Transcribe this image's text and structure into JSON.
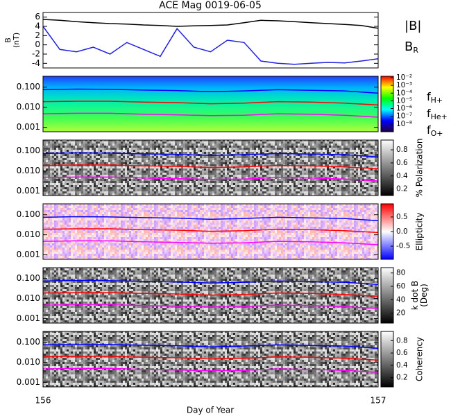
{
  "chart_data": [
    {
      "type": "line",
      "title": "ACE Mag 0019-06-05",
      "ylabel": [
        "B",
        "(nT)"
      ],
      "xlim": [
        156,
        157
      ],
      "ylim": [
        -5,
        7
      ],
      "yticks": [
        -4,
        -2,
        0,
        2,
        4,
        6
      ],
      "x": [
        156,
        156.05,
        156.1,
        156.15,
        156.2,
        156.25,
        156.3,
        156.35,
        156.4,
        156.45,
        156.5,
        156.55,
        156.6,
        156.65,
        156.7,
        156.75,
        156.8,
        156.85,
        156.9,
        156.95,
        157
      ],
      "series": [
        {
          "name": "|B|",
          "color": "#000000",
          "values": [
            5.5,
            5.3,
            5.0,
            4.8,
            4.6,
            4.5,
            4.3,
            4.2,
            4.0,
            4.1,
            4.2,
            4.3,
            4.8,
            5.3,
            5.2,
            5.0,
            4.8,
            4.6,
            4.4,
            4.2,
            3.6
          ]
        },
        {
          "name": "B",
          "subscript": "R",
          "color": "#2020e0",
          "values": [
            4.0,
            -1.0,
            -1.5,
            -0.5,
            -2.0,
            0.5,
            -1.0,
            -2.5,
            3.5,
            -0.5,
            -1.5,
            1.0,
            0.5,
            -3.5,
            -4.0,
            -4.2,
            -4.0,
            -3.8,
            -3.9,
            -3.5,
            -3.0
          ]
        }
      ]
    },
    {
      "type": "spectrogram",
      "log": true,
      "legend": true,
      "xlim": [
        156,
        157
      ],
      "ylim": [
        0.0006,
        0.35
      ],
      "yticks": [
        0.001,
        {
          "value": 0.01,
          "label": "0.010"
        },
        {
          "value": 0.1,
          "label": "0.100"
        }
      ],
      "clim": [
        1e-09,
        0.015
      ],
      "clog": true,
      "cticks": [
        {
          "value": 0.01,
          "label": "10⁻²"
        },
        {
          "value": 0.001,
          "label": "10⁻³"
        },
        {
          "value": 0.0001,
          "label": "10⁻⁴"
        },
        {
          "value": 1e-05,
          "label": "10⁻⁵"
        },
        {
          "value": 1e-06,
          "label": "10⁻⁶"
        },
        {
          "value": 1e-07,
          "label": "10⁻⁷"
        },
        {
          "value": 1e-08,
          "label": "10⁻⁸"
        }
      ],
      "x": [
        156,
        156.1,
        156.2,
        156.3,
        156.4,
        156.5,
        156.6,
        156.7,
        156.8,
        156.9,
        157
      ],
      "series": [
        {
          "name": "f",
          "subscript": "H+",
          "color": "#0000ff",
          "values": [
            0.075,
            0.08,
            0.078,
            0.072,
            0.068,
            0.06,
            0.065,
            0.075,
            0.07,
            0.065,
            0.05
          ]
        },
        {
          "name": "f",
          "subscript": "He+",
          "color": "#ff0000",
          "values": [
            0.019,
            0.02,
            0.02,
            0.018,
            0.017,
            0.015,
            0.016,
            0.019,
            0.018,
            0.016,
            0.013
          ]
        },
        {
          "name": "f",
          "subscript": "O+",
          "color": "#ff00ff",
          "values": [
            0.0047,
            0.005,
            0.005,
            0.0045,
            0.0042,
            0.0038,
            0.004,
            0.0047,
            0.0045,
            0.004,
            0.0032
          ]
        }
      ]
    },
    {
      "type": "spectrogram",
      "log": true,
      "xlim": [
        156,
        157
      ],
      "ylim": [
        0.0006,
        0.35
      ],
      "yticks": [
        0.001,
        {
          "value": 0.01,
          "label": "0.010"
        },
        {
          "value": 0.1,
          "label": "0.100"
        }
      ],
      "clabel": [
        "% Polarization"
      ],
      "clim": [
        0.1,
        0.95
      ],
      "cticks": [
        0.2,
        0.4,
        0.6,
        0.8
      ],
      "x": [
        156,
        156.1,
        156.2,
        156.3,
        156.4,
        156.5,
        156.6,
        156.7,
        156.8,
        156.9,
        157
      ],
      "series": [
        {
          "color": "#0000ff",
          "values": [
            0.075,
            0.08,
            0.078,
            0.072,
            0.068,
            0.06,
            0.065,
            0.075,
            0.07,
            0.065,
            0.05
          ]
        },
        {
          "color": "#ff0000",
          "values": [
            0.019,
            0.02,
            0.02,
            0.018,
            0.017,
            0.015,
            0.016,
            0.019,
            0.018,
            0.016,
            0.013
          ]
        },
        {
          "color": "#ff00ff",
          "values": [
            0.0047,
            0.005,
            0.005,
            0.0045,
            0.0042,
            0.0038,
            0.004,
            0.0047,
            0.0045,
            0.004,
            0.0032
          ]
        }
      ]
    },
    {
      "type": "spectrogram",
      "log": true,
      "xlim": [
        156,
        157
      ],
      "ylim": [
        0.0006,
        0.35
      ],
      "yticks": [
        0.001,
        {
          "value": 0.01,
          "label": "0.010"
        },
        {
          "value": 0.1,
          "label": "0.100"
        }
      ],
      "clabel": [
        "Ellipticity"
      ],
      "clim": [
        -0.95,
        0.95
      ],
      "cticks": [
        -0.5,
        {
          "value": 0,
          "label": "0.0"
        },
        0.5
      ],
      "x": [
        156,
        156.1,
        156.2,
        156.3,
        156.4,
        156.5,
        156.6,
        156.7,
        156.8,
        156.9,
        157
      ],
      "series": [
        {
          "color": "#0000ff",
          "values": [
            0.075,
            0.08,
            0.078,
            0.072,
            0.068,
            0.06,
            0.065,
            0.075,
            0.07,
            0.065,
            0.05
          ]
        },
        {
          "color": "#ff0000",
          "values": [
            0.019,
            0.02,
            0.02,
            0.018,
            0.017,
            0.015,
            0.016,
            0.019,
            0.018,
            0.016,
            0.013
          ]
        },
        {
          "color": "#ff00ff",
          "values": [
            0.0047,
            0.005,
            0.005,
            0.0045,
            0.0042,
            0.0038,
            0.004,
            0.0047,
            0.0045,
            0.004,
            0.0032
          ]
        }
      ]
    },
    {
      "type": "spectrogram",
      "log": true,
      "xlim": [
        156,
        157
      ],
      "ylim": [
        0.0006,
        0.35
      ],
      "yticks": [
        0.001,
        {
          "value": 0.01,
          "label": "0.010"
        },
        {
          "value": 0.1,
          "label": "0.100"
        }
      ],
      "clabel": [
        "k dot B",
        "(Deg)"
      ],
      "clim": [
        5,
        88
      ],
      "cticks": [
        20,
        40,
        60,
        80
      ],
      "x": [
        156,
        156.1,
        156.2,
        156.3,
        156.4,
        156.5,
        156.6,
        156.7,
        156.8,
        156.9,
        157
      ],
      "series": [
        {
          "color": "#0000ff",
          "values": [
            0.075,
            0.08,
            0.078,
            0.072,
            0.068,
            0.06,
            0.065,
            0.075,
            0.07,
            0.065,
            0.05
          ]
        },
        {
          "color": "#ff0000",
          "values": [
            0.019,
            0.02,
            0.02,
            0.018,
            0.017,
            0.015,
            0.016,
            0.019,
            0.018,
            0.016,
            0.013
          ]
        },
        {
          "color": "#ff00ff",
          "values": [
            0.0047,
            0.005,
            0.005,
            0.0045,
            0.0042,
            0.0038,
            0.004,
            0.0047,
            0.0045,
            0.004,
            0.0032
          ]
        }
      ]
    },
    {
      "type": "spectrogram",
      "log": true,
      "xlim": [
        156,
        157
      ],
      "ylim": [
        0.0006,
        0.35
      ],
      "yticks": [
        0.001,
        {
          "value": 0.01,
          "label": "0.010"
        },
        {
          "value": 0.1,
          "label": "0.100"
        }
      ],
      "clabel": [
        "Coherency"
      ],
      "clim": [
        0.05,
        0.95
      ],
      "cticks": [
        0.2,
        0.4,
        0.6,
        0.8
      ],
      "xticks": [
        156,
        157
      ],
      "xlabel": "Day of Year",
      "x": [
        156,
        156.1,
        156.2,
        156.3,
        156.4,
        156.5,
        156.6,
        156.7,
        156.8,
        156.9,
        157
      ],
      "series": [
        {
          "color": "#0000ff",
          "values": [
            0.075,
            0.08,
            0.078,
            0.072,
            0.068,
            0.06,
            0.065,
            0.075,
            0.07,
            0.065,
            0.05
          ]
        },
        {
          "color": "#ff0000",
          "values": [
            0.019,
            0.02,
            0.02,
            0.018,
            0.017,
            0.015,
            0.016,
            0.019,
            0.018,
            0.016,
            0.013
          ]
        },
        {
          "color": "#ff00ff",
          "values": [
            0.0047,
            0.005,
            0.005,
            0.0045,
            0.0042,
            0.0038,
            0.004,
            0.0047,
            0.0045,
            0.004,
            0.0032
          ]
        }
      ]
    }
  ]
}
